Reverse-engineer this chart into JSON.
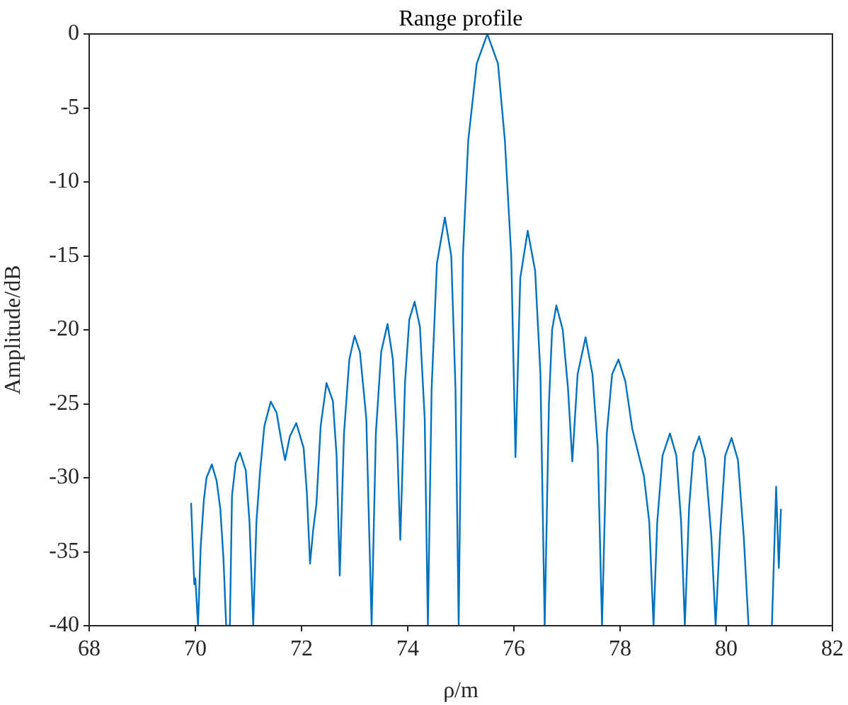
{
  "chart_data": {
    "type": "line",
    "title": "Range profile",
    "xlabel": "ρ/m",
    "ylabel": "Amplitude/dB",
    "xlim": [
      68,
      82
    ],
    "xticks": [
      68,
      70,
      72,
      74,
      76,
      78,
      80,
      82
    ],
    "ylim": [
      -40,
      0
    ],
    "yticks": [
      -40,
      -35,
      -30,
      -25,
      -20,
      -15,
      -10,
      -5,
      0
    ],
    "grid": false,
    "legend": false,
    "marker": "none",
    "line_style": "solid",
    "series": [
      {
        "color": "#0072bd",
        "x": [
          69.92,
          69.96,
          69.98,
          70.0,
          70.05,
          70.1,
          70.16,
          70.21,
          70.31,
          70.4,
          70.47,
          70.53,
          70.58,
          70.65,
          70.69,
          70.76,
          70.84,
          70.95,
          71.02,
          71.09,
          71.15,
          71.22,
          71.3,
          71.42,
          71.53,
          71.62,
          71.69,
          71.78,
          71.9,
          72.04,
          72.1,
          72.16,
          72.22,
          72.28,
          72.36,
          72.47,
          72.59,
          72.66,
          72.72,
          72.8,
          72.9,
          73.0,
          73.1,
          73.22,
          73.32,
          73.4,
          73.5,
          73.62,
          73.72,
          73.8,
          73.86,
          73.95,
          74.03,
          74.13,
          74.23,
          74.32,
          74.38,
          74.45,
          74.55,
          74.7,
          74.82,
          74.9,
          74.96,
          75.04,
          75.14,
          75.3,
          75.5,
          75.7,
          75.83,
          75.95,
          76.03,
          76.12,
          76.26,
          76.4,
          76.5,
          76.58,
          76.66,
          76.72,
          76.8,
          76.92,
          77.02,
          77.1,
          77.2,
          77.35,
          77.48,
          77.58,
          77.66,
          77.75,
          77.85,
          77.97,
          78.1,
          78.23,
          78.45,
          78.55,
          78.63,
          78.7,
          78.8,
          78.94,
          79.06,
          79.15,
          79.22,
          79.3,
          79.38,
          79.49,
          79.6,
          79.72,
          79.8,
          79.88,
          79.98,
          80.1,
          80.22,
          80.33,
          80.42,
          80.6,
          80.86,
          80.94,
          80.99,
          81.03
        ],
        "values": [
          -31.7,
          -35.5,
          -37.2,
          -36.8,
          -40,
          -34.7,
          -31.5,
          -30.0,
          -29.1,
          -30.2,
          -32.1,
          -35.5,
          -40,
          -40,
          -31.2,
          -29.0,
          -28.3,
          -29.5,
          -33,
          -40,
          -33,
          -29.5,
          -26.5,
          -24.85,
          -25.6,
          -27.5,
          -28.8,
          -27.2,
          -26.3,
          -28.0,
          -31,
          -35.8,
          -33.5,
          -31.8,
          -26.5,
          -23.6,
          -24.8,
          -28.5,
          -36.6,
          -27,
          -22,
          -20.4,
          -21.5,
          -26,
          -40,
          -27,
          -21.5,
          -19.6,
          -22,
          -27.5,
          -34.2,
          -23.5,
          -19.3,
          -18.1,
          -19.8,
          -26,
          -40,
          -24,
          -15.5,
          -12.4,
          -15,
          -24,
          -40,
          -15,
          -7.2,
          -2,
          0,
          -2,
          -7.2,
          -15,
          -28.6,
          -16.5,
          -13.3,
          -16,
          -23,
          -40,
          -25,
          -20,
          -18.35,
          -20,
          -24,
          -28.9,
          -23,
          -20.5,
          -23,
          -28,
          -40,
          -27,
          -23,
          -22.0,
          -23.5,
          -26.7,
          -29.9,
          -33,
          -40,
          -33,
          -28.5,
          -27.0,
          -28.5,
          -33,
          -40,
          -32,
          -28.3,
          -27.2,
          -28.7,
          -34,
          -40,
          -34,
          -28.5,
          -27.3,
          -28.8,
          -34,
          -40,
          null,
          -40,
          -30.6,
          -36.1,
          -32.1
        ]
      }
    ]
  }
}
